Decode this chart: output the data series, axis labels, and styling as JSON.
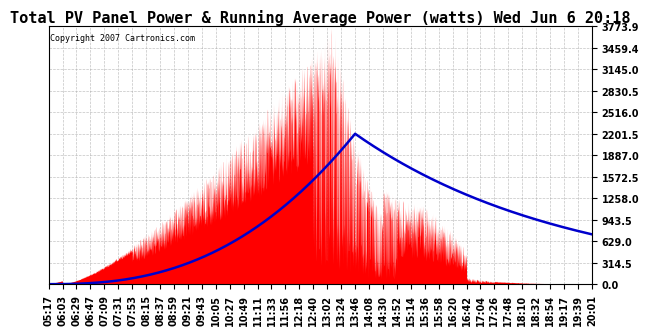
{
  "title": "Total PV Panel Power & Running Average Power (watts) Wed Jun 6 20:18",
  "copyright": "Copyright 2007 Cartronics.com",
  "y_min": 0.0,
  "y_max": 3773.9,
  "y_ticks": [
    0.0,
    314.5,
    629.0,
    943.5,
    1258.0,
    1572.5,
    1887.0,
    2201.5,
    2516.0,
    2830.5,
    3145.0,
    3459.4,
    3773.9
  ],
  "x_labels": [
    "05:17",
    "06:03",
    "06:29",
    "06:47",
    "07:09",
    "07:31",
    "07:53",
    "08:15",
    "08:37",
    "08:59",
    "09:21",
    "09:43",
    "10:05",
    "10:27",
    "10:49",
    "11:11",
    "11:33",
    "11:56",
    "12:18",
    "12:40",
    "13:02",
    "13:24",
    "13:46",
    "14:08",
    "14:30",
    "14:52",
    "15:14",
    "15:36",
    "15:58",
    "16:20",
    "16:42",
    "17:04",
    "17:26",
    "17:48",
    "18:10",
    "18:32",
    "18:54",
    "19:17",
    "19:39",
    "20:01"
  ],
  "background_color": "#ffffff",
  "plot_bg_color": "#ffffff",
  "fill_color": "#ff0000",
  "avg_line_color": "#0000cc",
  "grid_color": "#aaaaaa",
  "title_fontsize": 11,
  "tick_fontsize": 7
}
